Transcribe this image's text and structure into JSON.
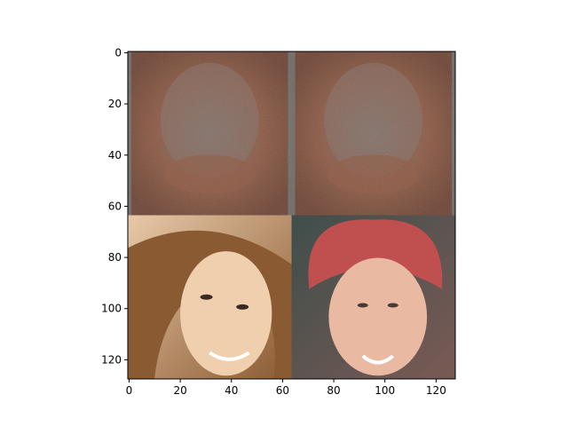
{
  "chart_data": {
    "type": "image",
    "title": "",
    "xlabel": "",
    "ylabel": "",
    "xlim": [
      -0.5,
      127.5
    ],
    "ylim": [
      127.5,
      -0.5
    ],
    "x_ticks": [
      0,
      20,
      40,
      60,
      80,
      100,
      120
    ],
    "y_ticks": [
      0,
      20,
      40,
      60,
      80,
      100,
      120
    ],
    "grid": false,
    "image_grid": {
      "rows": 2,
      "cols": 2,
      "tile_size": 64,
      "tiles": [
        {
          "row": 0,
          "col": 0,
          "content": "blurry generated sample",
          "colors": [
            "#6e4536",
            "#8b5a45",
            "#7e766f"
          ]
        },
        {
          "row": 0,
          "col": 1,
          "content": "blurry generated sample",
          "colors": [
            "#6e4536",
            "#8b5a45",
            "#7e766f"
          ]
        },
        {
          "row": 1,
          "col": 0,
          "content": "face photo, brown hair",
          "colors": [
            "#d8a87c",
            "#8a5a32",
            "#f0cfae"
          ]
        },
        {
          "row": 1,
          "col": 1,
          "content": "face photo, red hair",
          "colors": [
            "#3f4e4b",
            "#c0504f",
            "#e9b9a2"
          ]
        }
      ]
    }
  }
}
